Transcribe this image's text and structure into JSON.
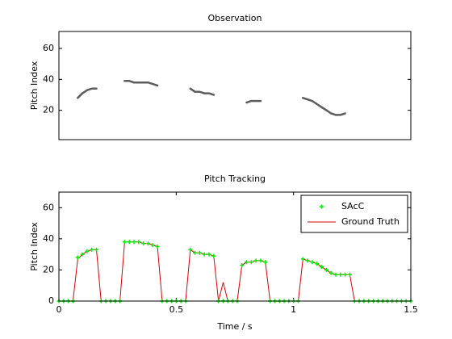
{
  "chart_data": [
    {
      "type": "image",
      "title": "Observation",
      "y_label": "Pitch Index",
      "xlim": [
        0,
        1.5
      ],
      "ylim": [
        1,
        71
      ],
      "yticks": [
        20,
        40,
        60
      ],
      "color": "#333333",
      "x": [
        0,
        0.02,
        0.04,
        0.06,
        0.08,
        0.1,
        0.12,
        0.14,
        0.16,
        0.18,
        0.2,
        0.22,
        0.24,
        0.26,
        0.28,
        0.3,
        0.32,
        0.34,
        0.36,
        0.38,
        0.4,
        0.42,
        0.44,
        0.46,
        0.48,
        0.5,
        0.52,
        0.54,
        0.56,
        0.58,
        0.6,
        0.62,
        0.64,
        0.66,
        0.68,
        0.7,
        0.72,
        0.74,
        0.76,
        0.78,
        0.8,
        0.82,
        0.84,
        0.86,
        0.88,
        0.9,
        0.92,
        0.94,
        0.96,
        0.98,
        1,
        1.02,
        1.04,
        1.06,
        1.08,
        1.1,
        1.12,
        1.14,
        1.16,
        1.18,
        1.2,
        1.22,
        1.24,
        1.26,
        1.28,
        1.3,
        1.32,
        1.34,
        1.36,
        1.38,
        1.4,
        1.42,
        1.44,
        1.46,
        1.48,
        1.5
      ],
      "values": [
        null,
        null,
        null,
        null,
        28,
        31,
        33,
        34,
        34,
        null,
        null,
        null,
        null,
        null,
        39,
        39,
        38,
        38,
        38,
        38,
        37,
        36,
        null,
        null,
        null,
        null,
        null,
        null,
        34,
        32,
        32,
        31,
        31,
        30,
        null,
        null,
        null,
        null,
        null,
        null,
        25,
        26,
        26,
        26,
        null,
        null,
        null,
        null,
        null,
        null,
        null,
        null,
        28,
        27,
        26,
        24,
        22,
        20,
        18,
        17,
        17,
        18,
        null,
        null,
        null,
        null,
        null,
        null,
        null,
        null,
        null,
        null,
        null,
        null,
        null,
        null
      ]
    },
    {
      "type": "line",
      "title": "Pitch Tracking",
      "x_label": "Time / s",
      "y_label": "Pitch Index",
      "xlim": [
        0,
        1.5
      ],
      "xticks": [
        0,
        0.5,
        1,
        1.5
      ],
      "ylim": [
        0,
        70
      ],
      "yticks": [
        0,
        20,
        40,
        60
      ],
      "legend": "upper right",
      "x": [
        0,
        0.02,
        0.04,
        0.06,
        0.08,
        0.1,
        0.12,
        0.14,
        0.16,
        0.18,
        0.2,
        0.22,
        0.24,
        0.26,
        0.28,
        0.3,
        0.32,
        0.34,
        0.36,
        0.38,
        0.4,
        0.42,
        0.44,
        0.46,
        0.48,
        0.5,
        0.52,
        0.54,
        0.56,
        0.58,
        0.6,
        0.62,
        0.64,
        0.66,
        0.68,
        0.7,
        0.72,
        0.74,
        0.76,
        0.78,
        0.8,
        0.82,
        0.84,
        0.86,
        0.88,
        0.9,
        0.92,
        0.94,
        0.96,
        0.98,
        1,
        1.02,
        1.04,
        1.06,
        1.08,
        1.1,
        1.12,
        1.14,
        1.16,
        1.18,
        1.2,
        1.22,
        1.24,
        1.26,
        1.28,
        1.3,
        1.32,
        1.34,
        1.36,
        1.38,
        1.4,
        1.42,
        1.44,
        1.46,
        1.48,
        1.5
      ],
      "series": [
        {
          "name": "SAcC",
          "color": "#00ee00",
          "values": [
            0,
            0,
            0,
            0,
            28,
            30,
            32,
            33,
            33,
            0,
            0,
            0,
            0,
            0,
            38,
            38,
            38,
            38,
            37,
            37,
            36,
            35,
            0,
            0,
            0,
            0,
            0,
            0,
            33,
            31,
            31,
            30,
            30,
            29,
            0,
            0,
            0,
            0,
            0,
            23,
            25,
            25,
            26,
            26,
            25,
            0,
            0,
            0,
            0,
            0,
            0,
            0,
            27,
            26,
            25,
            24,
            22,
            20,
            18,
            17,
            17,
            17,
            17,
            0,
            0,
            0,
            0,
            0,
            0,
            0,
            0,
            0,
            0,
            0,
            0,
            0
          ]
        },
        {
          "name": "Ground Truth",
          "color": "#dd0000",
          "values": [
            0,
            0,
            0,
            0,
            27,
            30,
            32,
            33,
            33,
            0,
            0,
            0,
            0,
            0,
            38,
            38,
            38,
            38,
            37,
            37,
            36,
            35,
            0,
            0,
            0,
            0,
            0,
            0,
            33,
            31,
            31,
            30,
            30,
            29,
            0,
            12,
            0,
            0,
            0,
            23,
            25,
            25,
            26,
            26,
            25,
            0,
            0,
            0,
            0,
            0,
            0,
            0,
            27,
            26,
            25,
            24,
            22,
            20,
            18,
            17,
            17,
            17,
            17,
            0,
            0,
            0,
            0,
            0,
            0,
            0,
            0,
            0,
            0,
            0,
            0,
            0
          ]
        }
      ]
    }
  ]
}
